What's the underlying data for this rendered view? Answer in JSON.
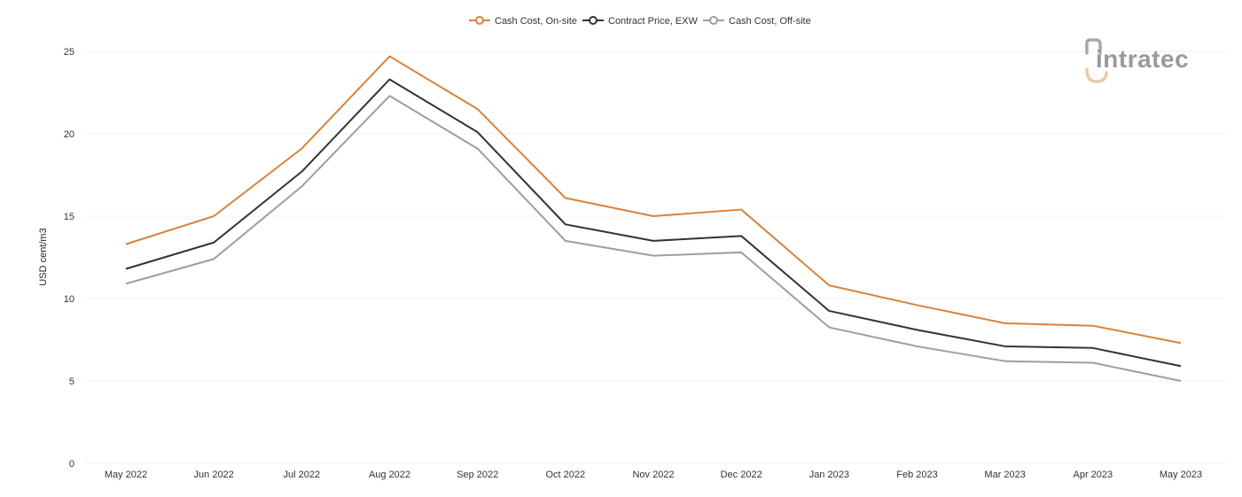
{
  "chart_data": {
    "type": "line",
    "categories": [
      "May 2022",
      "Jun 2022",
      "Jul 2022",
      "Aug 2022",
      "Sep 2022",
      "Oct 2022",
      "Nov 2022",
      "Dec 2022",
      "Jan 2023",
      "Feb 2023",
      "Mar 2023",
      "Apr 2023",
      "May 2023"
    ],
    "series": [
      {
        "name": "Cash Cost, On-site",
        "color": "#d9823b",
        "values": [
          13.3,
          15.0,
          19.1,
          24.7,
          21.5,
          16.1,
          15.0,
          15.4,
          10.8,
          9.6,
          8.5,
          8.35,
          7.3
        ]
      },
      {
        "name": "Contract Price, EXW",
        "color": "#333333",
        "values": [
          11.8,
          13.4,
          17.7,
          23.3,
          20.1,
          14.5,
          13.5,
          13.8,
          9.25,
          8.1,
          7.1,
          7.0,
          5.9
        ]
      },
      {
        "name": "Cash Cost, Off-site",
        "color": "#9e9e9e",
        "values": [
          10.9,
          12.4,
          16.8,
          22.3,
          19.1,
          13.5,
          12.6,
          12.8,
          8.25,
          7.1,
          6.2,
          6.1,
          5.0
        ]
      }
    ],
    "yticks": [
      0,
      5,
      10,
      15,
      20,
      25
    ],
    "ylim": [
      0,
      25
    ],
    "xlabel": "",
    "ylabel": "USD cent/m3",
    "legend_position": "top-center",
    "grid": true
  },
  "logo": {
    "text": "intratec"
  }
}
